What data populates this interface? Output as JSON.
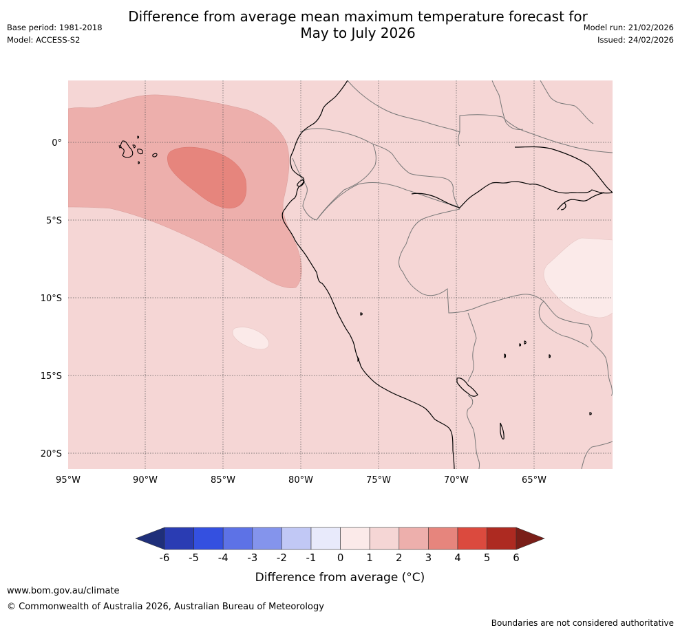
{
  "title": {
    "line1": "Difference from average mean maximum temperature forecast for",
    "line2": "May to July 2026"
  },
  "meta": {
    "base_period": "Base period: 1981-2018",
    "model": "Model: ACCESS-S2",
    "model_run": "Model run: 21/02/2026",
    "issued": "Issued: 24/02/2026"
  },
  "map": {
    "lat_labels": [
      "0°",
      "5°S",
      "10°S",
      "15°S",
      "20°S"
    ],
    "lon_labels": [
      "95°W",
      "90°W",
      "85°W",
      "80°W",
      "75°W",
      "70°W",
      "65°W"
    ],
    "colors": {
      "background_1_2": "#f5d6d5",
      "range_2_3": "#edafac",
      "range_3_4": "#e6857d",
      "range_0_1": "#fbeae9",
      "coastline": "#000000",
      "border": "#777777",
      "gridline": "#555555"
    }
  },
  "colorbar": {
    "tick_labels": [
      "-6",
      "-5",
      "-4",
      "-3",
      "-2",
      "-1",
      "0",
      "1",
      "2",
      "3",
      "4",
      "5",
      "6"
    ],
    "colors": [
      "#1f2f7a",
      "#2a3cb3",
      "#3450e0",
      "#5d72e6",
      "#8494ec",
      "#c1c8f5",
      "#e8eafb",
      "#fbeae9",
      "#f5d6d5",
      "#edafac",
      "#e6857d",
      "#db4a3e",
      "#ad2a21",
      "#7a1e18"
    ],
    "title": "Difference from average (°C)"
  },
  "footer": {
    "url": "www.bom.gov.au/climate",
    "copyright": "© Commonwealth of Australia 2026, Australian Bureau of Meteorology",
    "note": "Boundaries are not considered authoritative"
  }
}
